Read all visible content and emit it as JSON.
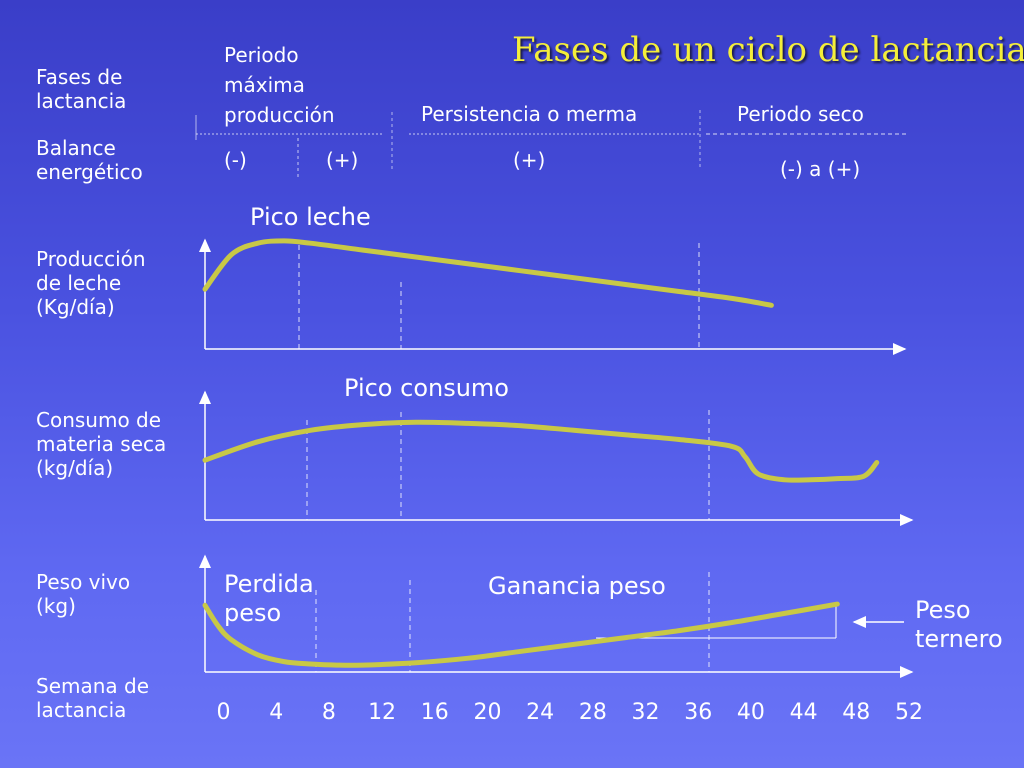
{
  "title": "Fases de un ciclo de lactancia",
  "row_labels": {
    "fases": [
      "Fases de",
      "lactancia"
    ],
    "balance": [
      "Balance",
      "energético"
    ],
    "produccion": [
      "Producción",
      "de leche",
      "(Kg/día)"
    ],
    "consumo": [
      "Consumo de",
      "materia seca",
      "(kg/día)"
    ],
    "peso": [
      "Peso vivo",
      "(kg)"
    ],
    "semana": [
      "Semana de",
      "lactancia"
    ]
  },
  "phases": {
    "maxima": [
      "Periodo",
      "máxima",
      "producción"
    ],
    "persistencia": "Persistencia o merma",
    "seco": "Periodo seco"
  },
  "balance_values": {
    "max_neg": "(-)",
    "max_pos": "(+)",
    "persistencia": "(+)",
    "seco": "(-) a (+)"
  },
  "annotations": {
    "pico_leche": "Pico leche",
    "pico_consumo": "Pico consumo",
    "perdida_peso": [
      "Perdida",
      "peso"
    ],
    "ganancia_peso": "Ganancia peso",
    "peso_ternero": [
      "Peso",
      "ternero"
    ]
  },
  "colors": {
    "curve": "#c8c846",
    "title": "#f4ee3a",
    "axis": "#ffffff"
  },
  "chart_data": [
    {
      "type": "line",
      "x_ticks": [
        0,
        4,
        8,
        12,
        16,
        20,
        24,
        28,
        32,
        36,
        40,
        44,
        48,
        52
      ],
      "series": [
        {
          "name": "Producción de leche",
          "x": [
            0,
            2,
            4,
            6,
            8,
            12,
            16,
            20,
            24,
            28,
            32,
            36,
            40,
            43
          ],
          "y": [
            0.52,
            0.82,
            0.92,
            0.94,
            0.92,
            0.86,
            0.8,
            0.74,
            0.68,
            0.62,
            0.56,
            0.5,
            0.44,
            0.38
          ]
        },
        {
          "name": "Consumo de materia seca",
          "x": [
            0,
            4,
            8,
            12,
            16,
            20,
            24,
            28,
            32,
            36,
            40,
            41,
            42,
            44,
            46,
            48,
            50,
            51
          ],
          "y": [
            0.52,
            0.68,
            0.78,
            0.83,
            0.85,
            0.84,
            0.82,
            0.78,
            0.74,
            0.7,
            0.64,
            0.55,
            0.4,
            0.35,
            0.35,
            0.36,
            0.38,
            0.5
          ]
        },
        {
          "name": "Peso vivo",
          "x": [
            0,
            1,
            2,
            4,
            6,
            8,
            10,
            12,
            16,
            20,
            24,
            28,
            32,
            36,
            40,
            44,
            48
          ],
          "y": [
            0.58,
            0.4,
            0.28,
            0.15,
            0.09,
            0.07,
            0.06,
            0.06,
            0.08,
            0.12,
            0.18,
            0.24,
            0.3,
            0.36,
            0.43,
            0.51,
            0.59
          ]
        }
      ]
    }
  ]
}
